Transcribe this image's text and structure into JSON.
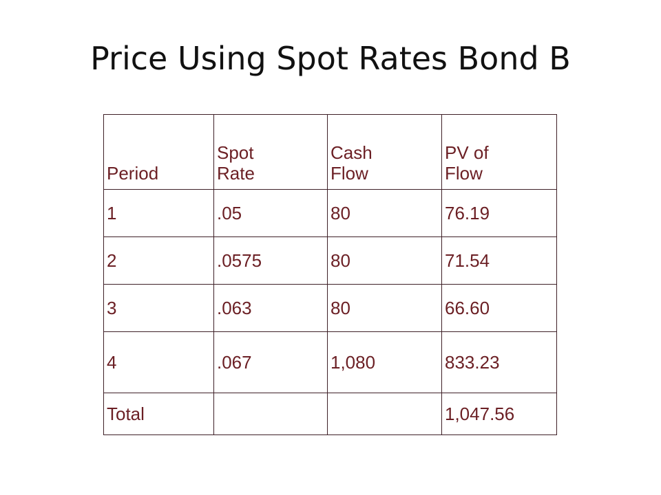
{
  "slide": {
    "title": "Price Using Spot Rates Bond B"
  },
  "table": {
    "headers": [
      "Period",
      "Spot Rate",
      "Cash Flow",
      "PV of Flow"
    ],
    "rows": [
      [
        "1",
        ".05",
        "80",
        "76.19"
      ],
      [
        "2",
        ".0575",
        "80",
        "71.54"
      ],
      [
        "3",
        ".063",
        "80",
        "66.60"
      ],
      [
        "4",
        ".067",
        "1,080",
        "833.23"
      ],
      [
        "Total",
        "",
        "",
        "1,047.56"
      ]
    ],
    "text_color": "#6b1f24",
    "border_color": "#3d1f26"
  }
}
